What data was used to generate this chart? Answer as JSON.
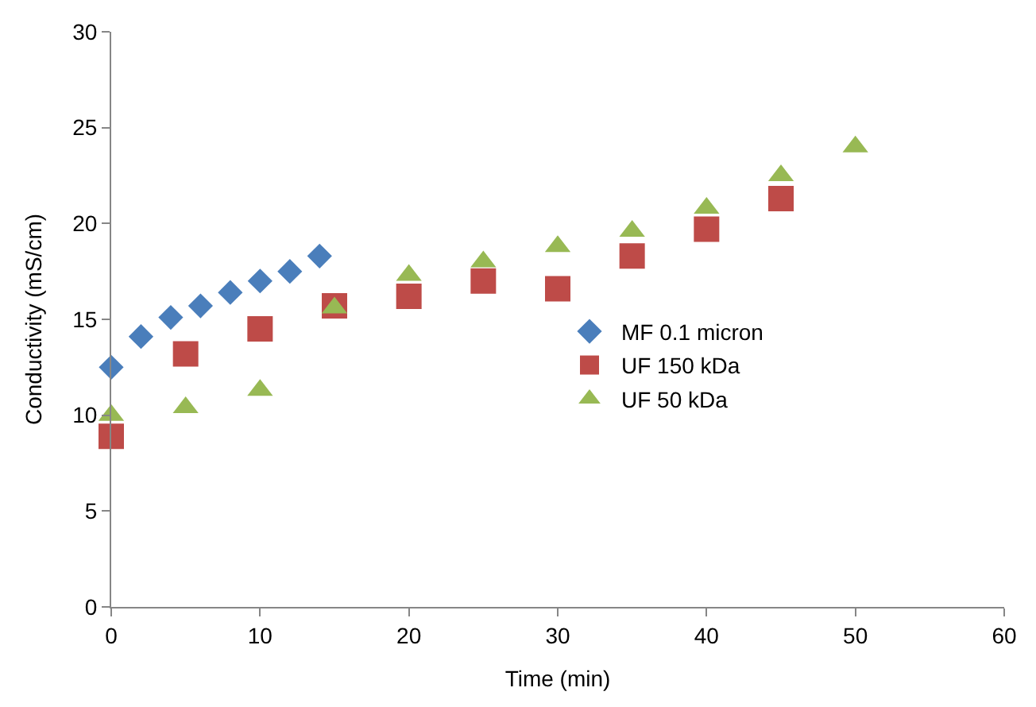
{
  "chart_data": {
    "type": "scatter",
    "xlabel": "Time (min)",
    "ylabel": "Conductivity (mS/cm)",
    "xlim": [
      0,
      60
    ],
    "xticks": [
      0,
      10,
      20,
      30,
      40,
      50,
      60
    ],
    "ylim": [
      0,
      30
    ],
    "yticks": [
      0,
      5,
      10,
      15,
      20,
      25,
      30
    ],
    "grid": false,
    "legend": "right",
    "series": [
      {
        "name": "MF 0.1 micron",
        "color": "#4a7ebb",
        "marker": "diamond",
        "x": [
          0,
          2,
          4,
          6,
          8,
          10,
          12,
          14
        ],
        "values": [
          12.5,
          14.1,
          15.1,
          15.7,
          16.4,
          17.0,
          17.5,
          18.3
        ]
      },
      {
        "name": "UF 150 kDa",
        "color": "#be4b48",
        "marker": "square",
        "x": [
          0,
          5,
          10,
          15,
          20,
          25,
          30,
          35,
          40,
          45
        ],
        "values": [
          8.9,
          13.2,
          14.5,
          15.7,
          16.2,
          17.0,
          16.6,
          18.3,
          19.7,
          21.3
        ]
      },
      {
        "name": "UF 50 kDa",
        "color": "#98b954",
        "marker": "triangle",
        "x": [
          0,
          5,
          10,
          15,
          20,
          25,
          30,
          35,
          40,
          45,
          50
        ],
        "values": [
          10.0,
          10.4,
          11.3,
          15.6,
          17.3,
          18.0,
          18.8,
          19.6,
          20.8,
          22.5,
          24.0
        ]
      }
    ]
  }
}
